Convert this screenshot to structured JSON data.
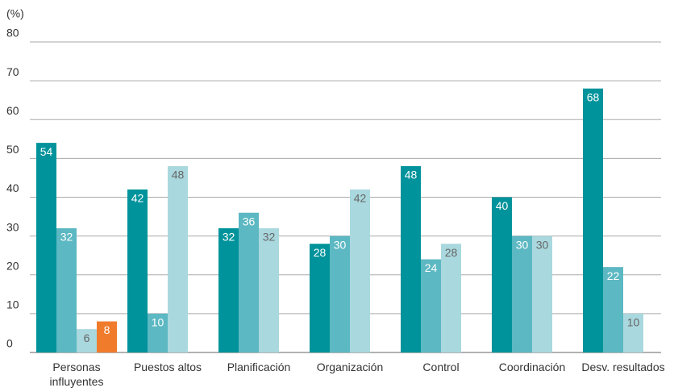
{
  "chart_data": {
    "type": "bar",
    "ylabel": "(%)",
    "categories": [
      "Personas\ninfluyentes",
      "Puestos altos",
      "Planificación",
      "Organización",
      "Control",
      "Coordinación",
      "Desv. resultados"
    ],
    "series": [
      {
        "color": "#00939b",
        "values": [
          54,
          42,
          32,
          28,
          48,
          40,
          68
        ]
      },
      {
        "color": "#5cb8c2",
        "values": [
          32,
          10,
          36,
          30,
          24,
          30,
          22
        ]
      },
      {
        "color": "#a9d8de",
        "values": [
          6,
          48,
          32,
          42,
          28,
          30,
          10
        ]
      },
      {
        "color": "#f07b2b",
        "values": [
          8,
          null,
          null,
          null,
          null,
          null,
          null
        ]
      }
    ],
    "ylim": [
      0,
      80
    ],
    "yticks": [
      0,
      10,
      20,
      30,
      40,
      50,
      60,
      70,
      80
    ],
    "grid": true
  }
}
